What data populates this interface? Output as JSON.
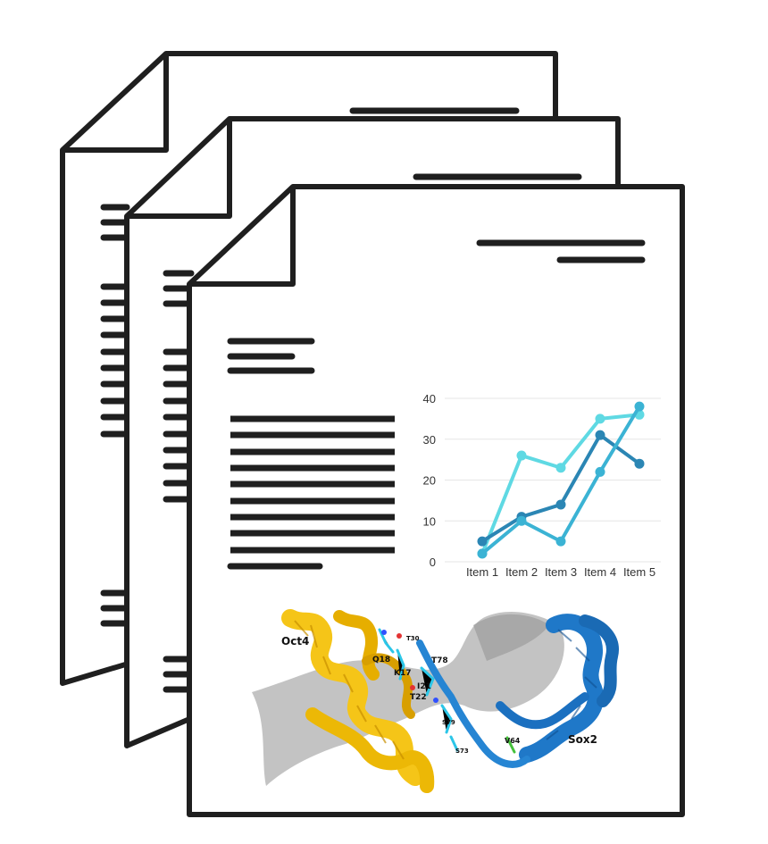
{
  "colors": {
    "outline": "#1f1f1f",
    "page": "#ffffff",
    "grid": "#e6e6e6",
    "series_light": "#5fd9e3",
    "series_dark": "#2b86b4",
    "series_mid": "#3bb3d4",
    "helix_oct4": "#f5c518",
    "helix_sox2": "#1f78c8",
    "dna_surface": "#b8b8b8"
  },
  "icons": [
    "document-stack-icon",
    "line-chart-icon",
    "protein-structure-icon"
  ],
  "chart_data": {
    "type": "line",
    "categories": [
      "Item 1",
      "Item 2",
      "Item 3",
      "Item 4",
      "Item 5"
    ],
    "ylim": [
      0,
      40
    ],
    "yticks": [
      "0",
      "10",
      "20",
      "30",
      "40"
    ],
    "grid": true,
    "series": [
      {
        "color": "#5fd9e3",
        "values": [
          2,
          26,
          23,
          35,
          36
        ]
      },
      {
        "color": "#2b86b4",
        "values": [
          5,
          11,
          14,
          31,
          24
        ]
      },
      {
        "color": "#3bb3d4",
        "values": [
          2,
          10,
          5,
          22,
          38
        ]
      }
    ]
  },
  "structure": {
    "labels": [
      "Oct4",
      "Sox2",
      "Q18",
      "K17",
      "I21",
      "T22",
      "T78",
      "V64",
      "T30",
      "S79",
      "S73"
    ]
  }
}
